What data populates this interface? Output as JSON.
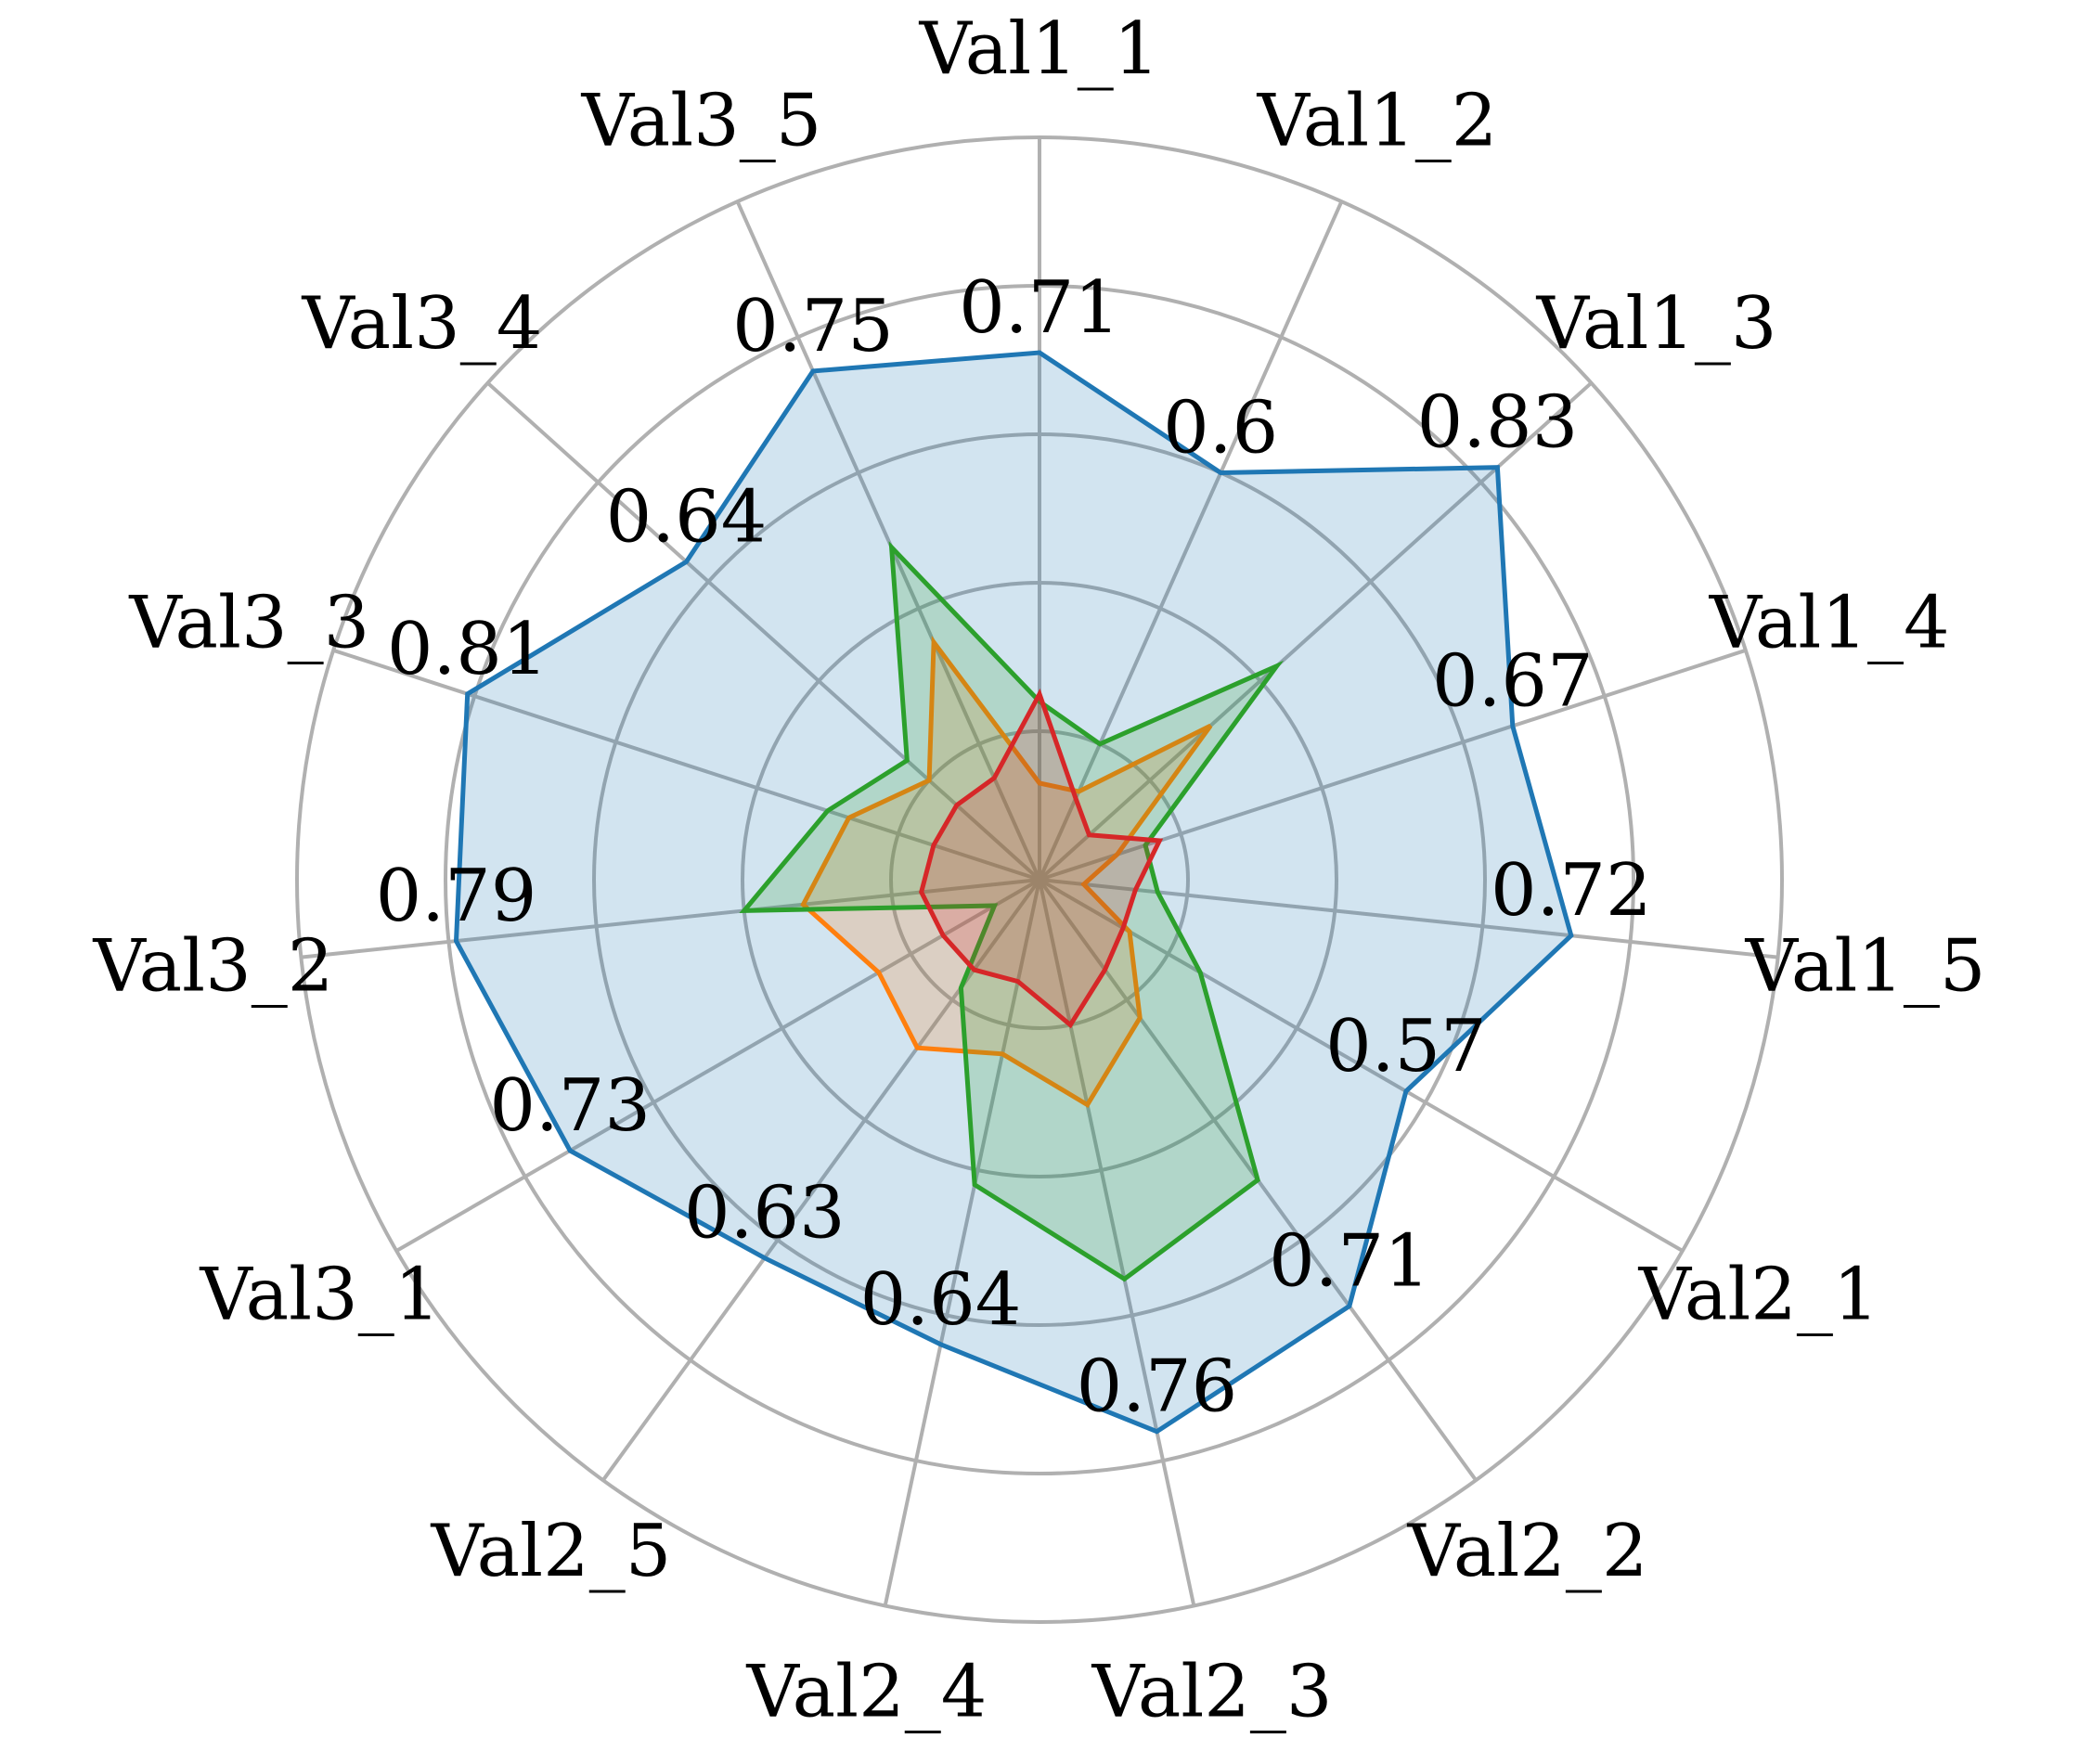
{
  "chart_data": {
    "type": "radar",
    "categories": [
      "Val1_1",
      "Val1_2",
      "Val1_3",
      "Val1_4",
      "Val1_5",
      "Val2_1",
      "Val2_2",
      "Val2_3",
      "Val2_4",
      "Val2_5",
      "Val3_1",
      "Val3_2",
      "Val3_3",
      "Val3_4",
      "Val3_5"
    ],
    "rlim": [
      0,
      1
    ],
    "rgrid": [
      0.2,
      0.4,
      0.6,
      0.8,
      1.0
    ],
    "grid": true,
    "legend": false,
    "series": [
      {
        "color": "#1f77b4",
        "fill": true,
        "values": [
          0.71,
          0.6,
          0.83,
          0.67,
          0.72,
          0.57,
          0.71,
          0.76,
          0.64,
          0.63,
          0.73,
          0.79,
          0.81,
          0.64,
          0.75
        ],
        "data_labels": [
          "0.71",
          "0.6",
          "0.83",
          "0.67",
          "0.72",
          "0.57",
          "0.71",
          "0.76",
          "0.64",
          "0.63",
          "0.73",
          "0.79",
          "0.81",
          "0.64",
          "0.75"
        ]
      },
      {
        "color": "#ff7f0e",
        "fill": true,
        "values": [
          0.13,
          0.13,
          0.31,
          0.11,
          0.06,
          0.14,
          0.23,
          0.31,
          0.24,
          0.28,
          0.25,
          0.32,
          0.27,
          0.2,
          0.35
        ]
      },
      {
        "color": "#2ca02c",
        "fill": true,
        "values": [
          0.24,
          0.2,
          0.43,
          0.15,
          0.16,
          0.25,
          0.5,
          0.55,
          0.42,
          0.18,
          0.07,
          0.4,
          0.3,
          0.24,
          0.49
        ]
      },
      {
        "color": "#d62728",
        "fill": true,
        "values": [
          0.25,
          0.12,
          0.09,
          0.17,
          0.13,
          0.13,
          0.15,
          0.2,
          0.14,
          0.15,
          0.15,
          0.16,
          0.15,
          0.15,
          0.15
        ]
      }
    ]
  }
}
